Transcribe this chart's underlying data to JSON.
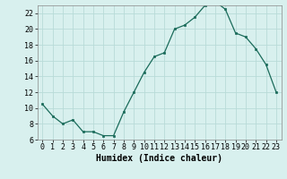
{
  "x": [
    0,
    1,
    2,
    3,
    4,
    5,
    6,
    7,
    8,
    9,
    10,
    11,
    12,
    13,
    14,
    15,
    16,
    17,
    18,
    19,
    20,
    21,
    22,
    23
  ],
  "y": [
    10.5,
    9.0,
    8.0,
    8.5,
    7.0,
    7.0,
    6.5,
    6.5,
    9.5,
    12.0,
    14.5,
    16.5,
    17.0,
    20.0,
    20.5,
    21.5,
    23.0,
    23.5,
    22.5,
    19.5,
    19.0,
    17.5,
    15.5,
    12.0
  ],
  "line_color": "#1a6b5a",
  "marker": "s",
  "marker_size": 2,
  "bg_color": "#d8f0ee",
  "grid_color": "#b8dbd8",
  "xlabel": "Humidex (Indice chaleur)",
  "xlim": [
    -0.5,
    23.5
  ],
  "ylim": [
    6,
    23
  ],
  "yticks": [
    6,
    8,
    10,
    12,
    14,
    16,
    18,
    20,
    22
  ],
  "xticks": [
    0,
    1,
    2,
    3,
    4,
    5,
    6,
    7,
    8,
    9,
    10,
    11,
    12,
    13,
    14,
    15,
    16,
    17,
    18,
    19,
    20,
    21,
    22,
    23
  ],
  "tick_fontsize": 6,
  "label_fontsize": 7
}
